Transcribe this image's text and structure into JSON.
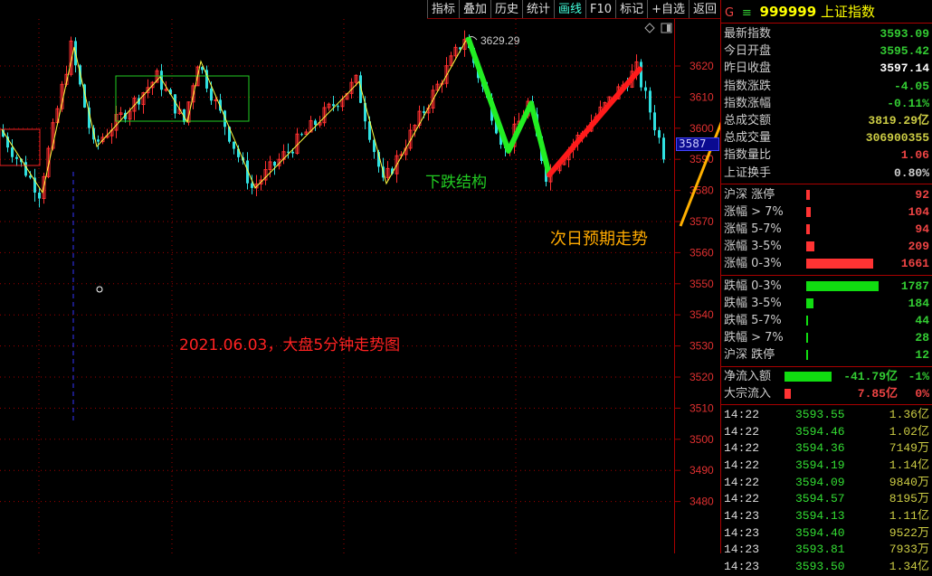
{
  "toolbar": {
    "items": [
      {
        "label": "指标"
      },
      {
        "label": "叠加"
      },
      {
        "label": "历史"
      },
      {
        "label": "统计"
      },
      {
        "label": "画线",
        "active": true
      },
      {
        "label": "F10"
      },
      {
        "label": "标记"
      },
      {
        "label": "+自选"
      },
      {
        "label": "返回"
      }
    ]
  },
  "colors": {
    "up": "#ff3030",
    "down": "#30e0e0",
    "grid": "#a00000",
    "zigzag": "#ffff40",
    "green_line": "#22ee22",
    "red_line": "#ff1a1a",
    "arrow": "#ffb000",
    "axis_text": "#e03030"
  },
  "chart": {
    "y_ticks": [
      3620,
      3610,
      3600,
      3590,
      3580,
      3570,
      3560,
      3550,
      3540,
      3530,
      3520,
      3510,
      3500,
      3490,
      3480
    ],
    "current_price_label": "3587",
    "high_label": "3629.29",
    "zigzag_pivots": [
      [
        0,
        3599.6
      ],
      [
        9,
        3579.3
      ],
      [
        16,
        3626.1
      ],
      [
        21,
        3594.1
      ],
      [
        35,
        3616.5
      ],
      [
        41,
        3602
      ],
      [
        44,
        3621.5
      ],
      [
        56,
        3580.8
      ],
      [
        79,
        3615
      ],
      [
        85,
        3582.2
      ],
      [
        103,
        3629.29
      ]
    ],
    "green_structure": [
      [
        103,
        3629.29
      ],
      [
        112,
        3592.7
      ],
      [
        117,
        3608
      ],
      [
        121,
        3585
      ]
    ],
    "red_expectation": [
      [
        121,
        3585
      ],
      [
        141,
        3619
      ]
    ],
    "tail": [
      [
        141,
        3619
      ],
      [
        147,
        3592
      ]
    ],
    "annotations": {
      "down_structure": "下跌结构",
      "next_day": "次日预期走势",
      "caption": "2021.06.03，大盘5分钟走势图"
    }
  },
  "panel": {
    "header": {
      "prefix": "G",
      "menu_icon": "menu-icon",
      "code": "999999",
      "name": "上证指数"
    },
    "stats": [
      {
        "label": "最新指数",
        "value": "3593.09",
        "color": "#3c3"
      },
      {
        "label": "今日开盘",
        "value": "3595.42",
        "color": "#3c3"
      },
      {
        "label": "昨日收盘",
        "value": "3597.14",
        "color": "#fff"
      },
      {
        "label": "指数涨跌",
        "value": "-4.05",
        "color": "#3c3"
      },
      {
        "label": "指数涨幅",
        "value": "-0.11%",
        "color": "#3c3"
      },
      {
        "label": "总成交额",
        "value": "3819.29亿",
        "color": "#cc4"
      },
      {
        "label": "总成交量",
        "value": "306900355",
        "color": "#cc4"
      },
      {
        "label": "指数量比",
        "value": "1.06",
        "color": "#e44"
      },
      {
        "label": "上证换手",
        "value": "0.80%",
        "color": "#ccc"
      }
    ],
    "up_dist": [
      {
        "label": "沪深 涨停",
        "value": "92"
      },
      {
        "label": "涨幅 > 7%",
        "value": "104"
      },
      {
        "label": "涨幅 5-7%",
        "value": "94"
      },
      {
        "label": "涨幅 3-5%",
        "value": "209"
      },
      {
        "label": "涨幅 0-3%",
        "value": "1661"
      }
    ],
    "down_dist": [
      {
        "label": "跌幅 0-3%",
        "value": "1787"
      },
      {
        "label": "跌幅 3-5%",
        "value": "184"
      },
      {
        "label": "跌幅 5-7%",
        "value": "44"
      },
      {
        "label": "跌幅 > 7%",
        "value": "28"
      },
      {
        "label": "沪深 跌停",
        "value": "12"
      }
    ],
    "flows": [
      {
        "label": "净流入额",
        "amount": "-41.79亿",
        "pct": "-1%",
        "color": "#3c3",
        "bar_ratio": 0.95
      },
      {
        "label": "大宗流入",
        "amount": "7.85亿",
        "pct": "0%",
        "color": "#e44",
        "bar_ratio": 0.12
      }
    ],
    "ticks": [
      {
        "time": "14:22",
        "price": "3593.55",
        "vol": "1.36亿"
      },
      {
        "time": "14:22",
        "price": "3594.46",
        "vol": "1.02亿"
      },
      {
        "time": "14:22",
        "price": "3594.36",
        "vol": "7149万"
      },
      {
        "time": "14:22",
        "price": "3594.19",
        "vol": "1.14亿"
      },
      {
        "time": "14:22",
        "price": "3594.09",
        "vol": "9840万"
      },
      {
        "time": "14:22",
        "price": "3594.57",
        "vol": "8195万"
      },
      {
        "time": "14:23",
        "price": "3594.13",
        "vol": "1.11亿"
      },
      {
        "time": "14:23",
        "price": "3594.40",
        "vol": "9522万"
      },
      {
        "time": "14:23",
        "price": "3593.81",
        "vol": "7933万"
      },
      {
        "time": "14:23",
        "price": "3593.50",
        "vol": "1.34亿"
      }
    ]
  }
}
